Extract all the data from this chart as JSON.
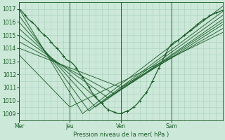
{
  "bg_color": "#cce8d8",
  "grid_color": "#aacfbe",
  "line_color": "#1a5c28",
  "xlabel": "Pression niveau de la mer( hPa )",
  "xtick_labels": [
    "Mer",
    "Jeu",
    "Ven",
    "Sam"
  ],
  "xtick_positions": [
    0,
    48,
    96,
    144
  ],
  "ylim": [
    1008.5,
    1017.5
  ],
  "yticks": [
    1009,
    1010,
    1011,
    1012,
    1013,
    1014,
    1015,
    1016,
    1017
  ],
  "xlim": [
    0,
    192
  ],
  "figsize": [
    3.2,
    2.0
  ],
  "dpi": 100,
  "forecast_lines": [
    {
      "x": [
        0,
        60,
        192
      ],
      "y": [
        1017.0,
        1009.0,
        1017.2
      ]
    },
    {
      "x": [
        0,
        66,
        192
      ],
      "y": [
        1016.5,
        1009.2,
        1016.8
      ]
    },
    {
      "x": [
        0,
        72,
        192
      ],
      "y": [
        1016.0,
        1009.5,
        1016.5
      ]
    },
    {
      "x": [
        0,
        78,
        192
      ],
      "y": [
        1015.5,
        1009.8,
        1016.2
      ]
    },
    {
      "x": [
        0,
        84,
        192
      ],
      "y": [
        1015.0,
        1010.2,
        1016.0
      ]
    },
    {
      "x": [
        0,
        90,
        192
      ],
      "y": [
        1014.5,
        1010.5,
        1015.8
      ]
    },
    {
      "x": [
        0,
        96,
        192
      ],
      "y": [
        1014.0,
        1011.0,
        1015.5
      ]
    },
    {
      "x": [
        0,
        48,
        192
      ],
      "y": [
        1013.5,
        1009.5,
        1015.2
      ]
    }
  ],
  "main_x": [
    0,
    3,
    6,
    9,
    12,
    15,
    18,
    21,
    24,
    27,
    30,
    33,
    36,
    39,
    42,
    45,
    48,
    51,
    54,
    57,
    60,
    63,
    66,
    69,
    72,
    75,
    78,
    81,
    84,
    87,
    90,
    93,
    96,
    99,
    102,
    105,
    108,
    111,
    114,
    117,
    120,
    123,
    126,
    129,
    132,
    135,
    138,
    141,
    144,
    147,
    150,
    153,
    156,
    159,
    162,
    165,
    168,
    171,
    174,
    177,
    180,
    183,
    186,
    189,
    192
  ],
  "main_y": [
    1017.0,
    1016.8,
    1016.5,
    1016.2,
    1016.0,
    1015.8,
    1015.5,
    1015.2,
    1015.0,
    1014.8,
    1014.5,
    1014.2,
    1014.0,
    1013.7,
    1013.4,
    1013.1,
    1013.0,
    1012.8,
    1012.5,
    1012.1,
    1011.8,
    1011.4,
    1011.0,
    1010.6,
    1010.3,
    1010.0,
    1009.8,
    1009.5,
    1009.3,
    1009.2,
    1009.1,
    1009.0,
    1009.0,
    1009.1,
    1009.2,
    1009.3,
    1009.5,
    1009.7,
    1010.0,
    1010.3,
    1010.6,
    1011.0,
    1011.5,
    1012.0,
    1012.5,
    1013.0,
    1013.5,
    1014.0,
    1014.3,
    1014.5,
    1014.6,
    1014.8,
    1015.0,
    1015.2,
    1015.4,
    1015.6,
    1015.8,
    1016.0,
    1016.2,
    1016.3,
    1016.5,
    1016.6,
    1016.7,
    1016.8,
    1016.9
  ]
}
